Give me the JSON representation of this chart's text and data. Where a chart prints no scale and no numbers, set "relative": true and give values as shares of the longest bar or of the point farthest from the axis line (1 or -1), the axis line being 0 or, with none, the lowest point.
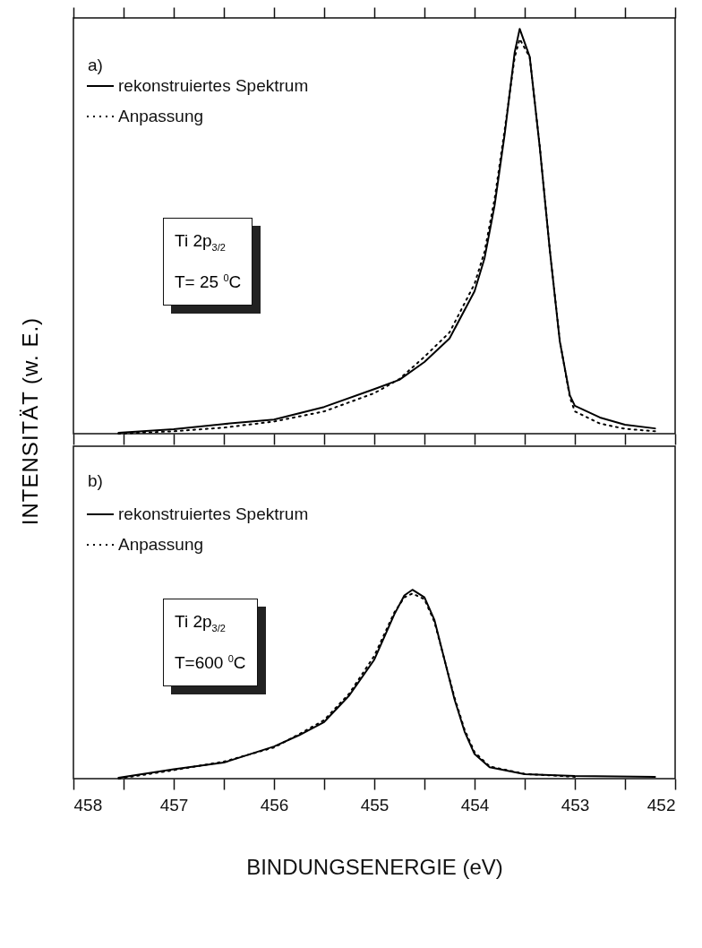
{
  "chart_data": [
    {
      "type": "line",
      "relative": true,
      "ylabel": "INTENSITÄT (w. E.)",
      "xlim": [
        458,
        452
      ],
      "xticks": [
        458,
        {
          "value": 457.5,
          "label": null
        },
        457,
        {
          "value": 456.5,
          "label": null
        },
        456,
        {
          "value": 455.5,
          "label": null
        },
        455,
        {
          "value": 454.5,
          "label": null
        },
        454,
        {
          "value": 453.5,
          "label": null
        },
        453,
        {
          "value": 452.5,
          "label": null
        },
        452
      ],
      "tick_labels": false,
      "legend": "top left",
      "annotations": [
        "a)",
        "Ti 2p$_{3/2}$",
        "T= 25 $^{0}$C"
      ],
      "x": [
        457.55,
        457,
        456.5,
        456,
        455.5,
        455,
        454.75,
        454.5,
        454.25,
        454,
        453.9,
        453.8,
        453.7,
        453.6,
        453.55,
        453.45,
        453.35,
        453.25,
        453.15,
        453.05,
        453,
        452.75,
        452.5,
        452.2
      ],
      "series": [
        {
          "name": "rekonstruiertes Spektrum",
          "color": "#000000",
          "line_style": "solid",
          "values": [
            0.002,
            0.011,
            0.024,
            0.035,
            0.066,
            0.11,
            0.133,
            0.177,
            0.235,
            0.352,
            0.434,
            0.564,
            0.739,
            0.942,
            1,
            0.931,
            0.708,
            0.454,
            0.228,
            0.095,
            0.069,
            0.04,
            0.022,
            0.013
          ]
        },
        {
          "name": "Anpassung",
          "color": "#000000",
          "line_style": "dotted",
          "values": [
            0,
            0.006,
            0.015,
            0.03,
            0.055,
            0.1,
            0.135,
            0.19,
            0.25,
            0.37,
            0.45,
            0.58,
            0.75,
            0.93,
            0.975,
            0.93,
            0.71,
            0.455,
            0.23,
            0.09,
            0.055,
            0.025,
            0.012,
            0.006
          ]
        }
      ]
    },
    {
      "type": "line",
      "relative": true,
      "xlabel": "BINDUNGSENERGIE (eV)",
      "xlim": [
        458,
        452
      ],
      "xticks": [
        458,
        {
          "value": 457.5,
          "label": null
        },
        457,
        {
          "value": 456.5,
          "label": null
        },
        456,
        {
          "value": 455.5,
          "label": null
        },
        455,
        {
          "value": 454.5,
          "label": null
        },
        454,
        {
          "value": 453.5,
          "label": null
        },
        453,
        {
          "value": 452.5,
          "label": null
        },
        452
      ],
      "tick_labels": "x",
      "legend": "top left",
      "annotations": [
        "b)",
        "Ti 2p$_{3/2}$",
        "T=600 $^{0}$C"
      ],
      "x": [
        457.55,
        457,
        456.5,
        456,
        455.75,
        455.5,
        455.25,
        455,
        454.8,
        454.7,
        454.62,
        454.5,
        454.4,
        454.3,
        454.2,
        454.1,
        454,
        453.85,
        453.5,
        453,
        452.2
      ],
      "series": [
        {
          "name": "rekonstruiertes Spektrum",
          "color": "#000000",
          "line_style": "solid",
          "values": [
            0.005,
            0.05,
            0.085,
            0.17,
            0.23,
            0.3,
            0.44,
            0.63,
            0.87,
            0.97,
            1,
            0.96,
            0.84,
            0.63,
            0.42,
            0.25,
            0.13,
            0.06,
            0.024,
            0.014,
            0.01
          ]
        },
        {
          "name": "Anpassung",
          "color": "#000000",
          "line_style": "dotted",
          "values": [
            0,
            0.045,
            0.09,
            0.165,
            0.235,
            0.31,
            0.45,
            0.65,
            0.88,
            0.96,
            0.98,
            0.95,
            0.83,
            0.63,
            0.43,
            0.26,
            0.14,
            0.065,
            0.025,
            0.01,
            null
          ]
        }
      ]
    }
  ]
}
